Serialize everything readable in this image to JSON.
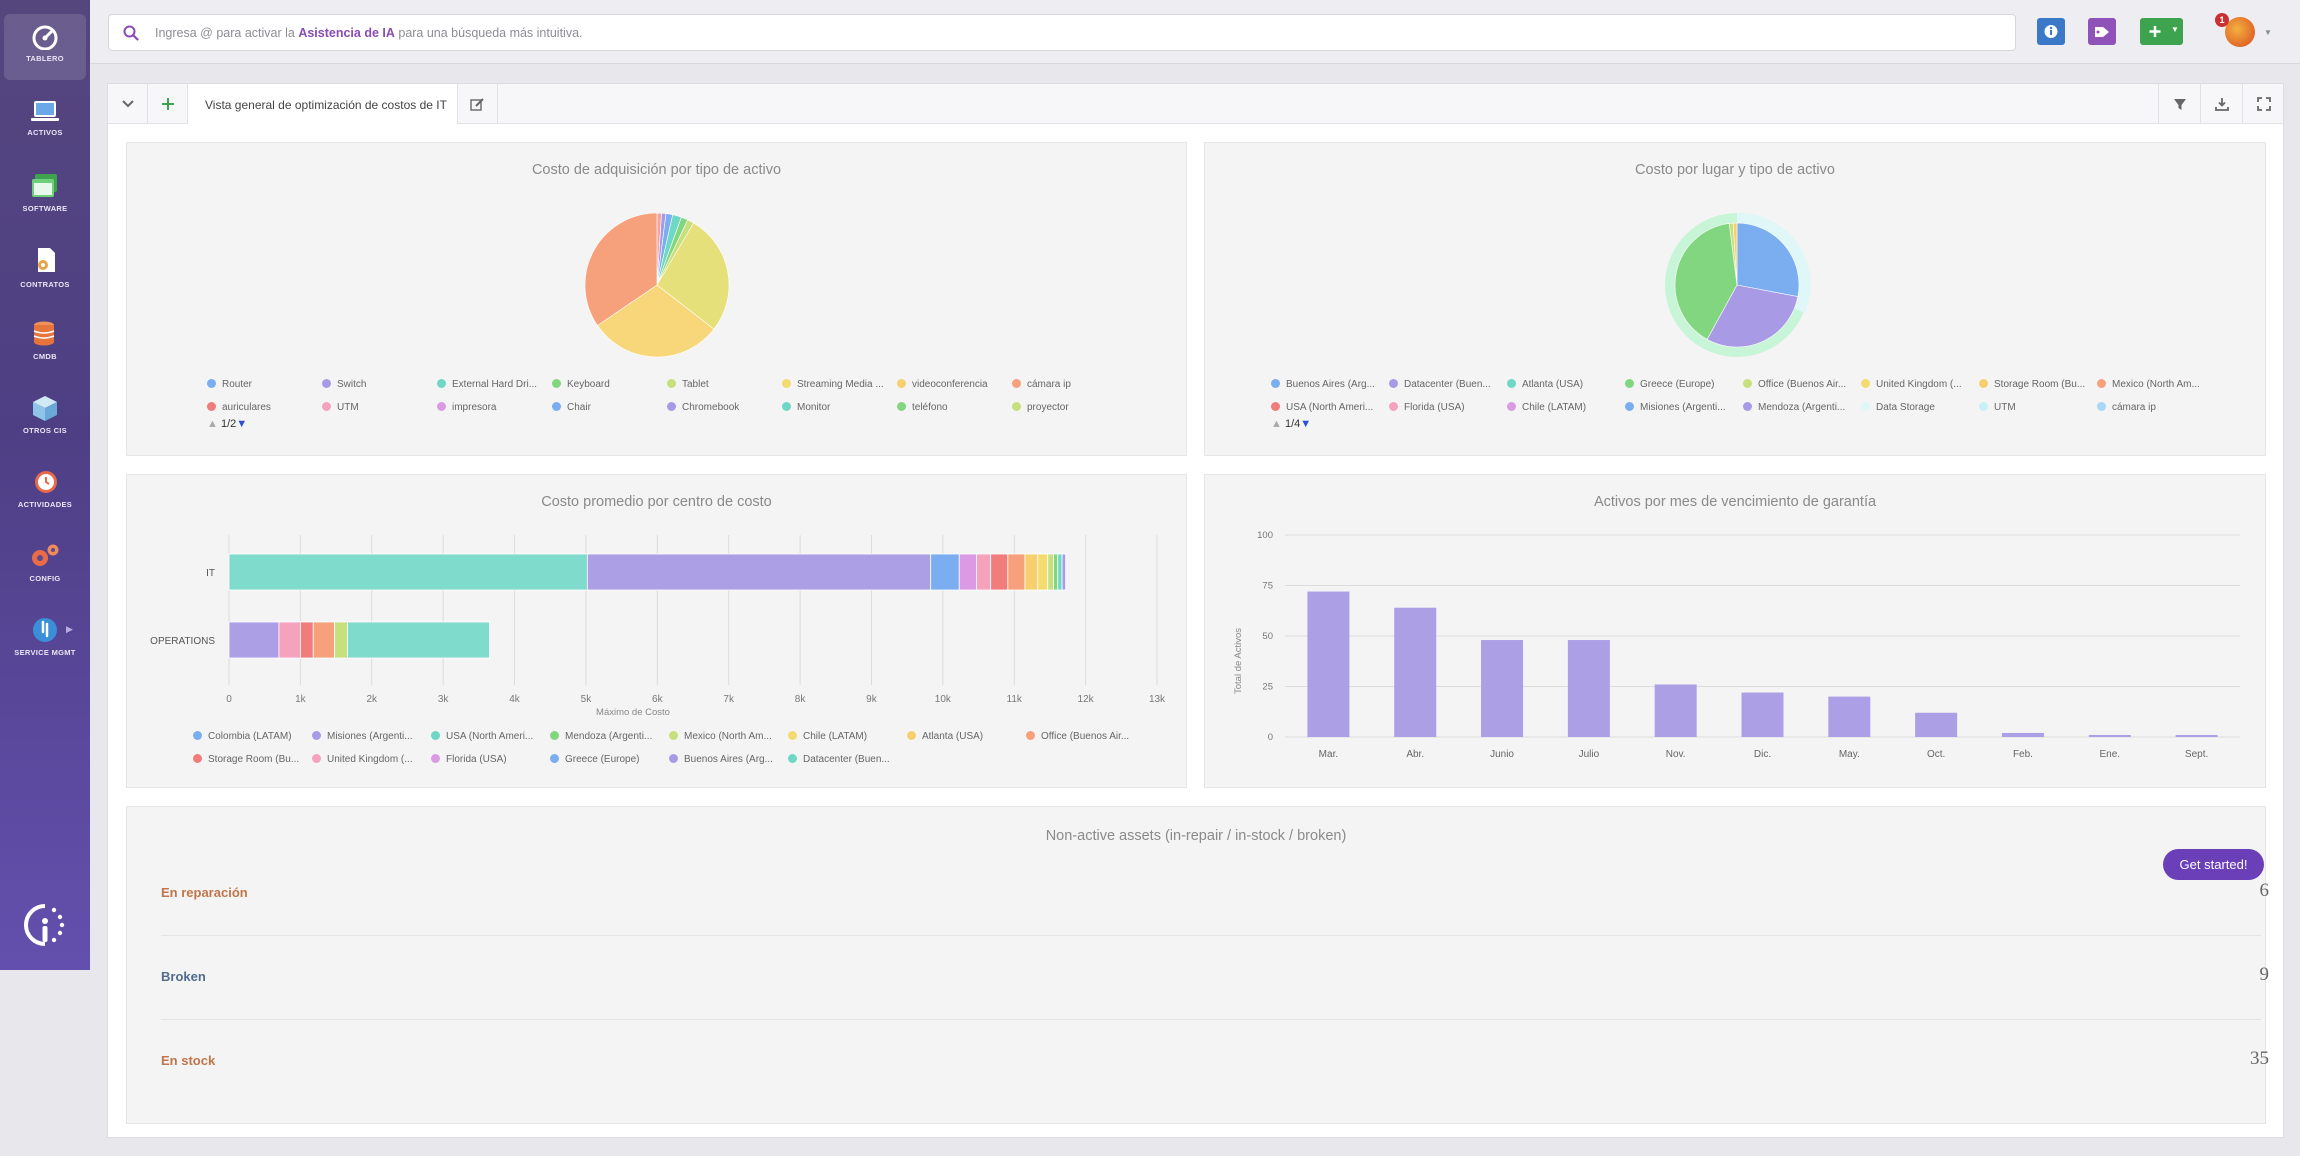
{
  "nav": [
    {
      "label": "TABLERO",
      "icon": "gauge-icon"
    },
    {
      "label": "ACTIVOS",
      "icon": "laptop-icon"
    },
    {
      "label": "SOFTWARE",
      "icon": "software-window-icon"
    },
    {
      "label": "CONTRATOS",
      "icon": "contract-icon"
    },
    {
      "label": "CMDB",
      "icon": "database-icon"
    },
    {
      "label": "OTROS CIS",
      "icon": "box-icon"
    },
    {
      "label": "ACTIVIDADES",
      "icon": "clock-icon"
    },
    {
      "label": "CONFIG",
      "icon": "gears-icon"
    },
    {
      "label": "SERVICE MGMT",
      "icon": "service-icon"
    }
  ],
  "search": {
    "prefix": "Ingresa @ para activar la ",
    "highlight": "Asistencia de IA",
    "suffix": " para una búsqueda más intuitiva."
  },
  "notifications": {
    "count": "1"
  },
  "tab": {
    "title": "Vista general de optimización de costos de IT"
  },
  "chart1": {
    "title": "Costo de adquisición por tipo de activo",
    "pager": "1/2"
  },
  "chart2": {
    "title": "Costo por lugar y tipo de activo",
    "pager": "1/4"
  },
  "chart3": {
    "title": "Costo promedio por centro de costo"
  },
  "chart4": {
    "title": "Activos por mes de vencimiento de garantía"
  },
  "nonactive": {
    "title": "Non-active assets (in-repair / in-stock / broken)",
    "rows": [
      {
        "label": "En reparación",
        "count": "6",
        "color": "#c0764a"
      },
      {
        "label": "Broken",
        "count": "9",
        "color": "#4f6c8e"
      },
      {
        "label": "En stock",
        "count": "35",
        "color": "#c0764a"
      }
    ]
  },
  "get_started": "Get started!",
  "chart_data": [
    {
      "type": "pie",
      "title": "Costo de adquisición por tipo de activo",
      "legend": [
        "Router",
        "Switch",
        "External Hard Dri...",
        "Keyboard",
        "Tablet",
        "Streaming Media ...",
        "videoconferencia",
        "cámara ip",
        "auriculares",
        "UTM",
        "impresora",
        "Chair",
        "Chromebook",
        "Monitor",
        "teléfono",
        "proyector"
      ],
      "legend_colors": [
        "#7aaef0",
        "#a99ae6",
        "#6fd8c4",
        "#82d67f",
        "#c7df7d",
        "#f3db6f",
        "#f8cf6e",
        "#f7a07c",
        "#f07c7c",
        "#f5a2bd",
        "#dd9ae4",
        "#7aaef0",
        "#a99ae6",
        "#6fd8c4",
        "#82d67f",
        "#c7df7d"
      ],
      "slices": [
        {
          "label": "External Hard Dri...",
          "value": 1,
          "color": "#f4a39e"
        },
        {
          "label": "Switch",
          "value": 1,
          "color": "#a99ae6"
        },
        {
          "label": "Router",
          "value": 1.5,
          "color": "#7aaef0"
        },
        {
          "label": "Monitor",
          "value": 2,
          "color": "#6fd8c4"
        },
        {
          "label": "Keyboard",
          "value": 1.5,
          "color": "#82d67f"
        },
        {
          "label": "Tablet",
          "value": 1.5,
          "color": "#c7df7d"
        },
        {
          "label": "Streaming Media ...",
          "value": 27,
          "color": "#e6e07a"
        },
        {
          "label": "videoconferencia",
          "value": 30,
          "color": "#f8d77a"
        },
        {
          "label": "cámara ip",
          "value": 34.5,
          "color": "#f7a07c"
        }
      ]
    },
    {
      "type": "pie",
      "title": "Costo por lugar y tipo de activo",
      "legend": [
        "Buenos Aires (Arg...",
        "Datacenter (Buen...",
        "Atlanta (USA)",
        "Greece (Europe)",
        "Office (Buenos Air...",
        "United Kingdom (...",
        "Storage Room (Bu...",
        "Mexico (North Am...",
        "USA (North Ameri...",
        "Florida (USA)",
        "Chile (LATAM)",
        "Misiones (Argenti...",
        "Mendoza (Argenti...",
        "Data Storage",
        "UTM",
        "cámara ip"
      ],
      "legend_colors": [
        "#7aaef0",
        "#a99ae6",
        "#6fd8c4",
        "#82d67f",
        "#c7df7d",
        "#f3db6f",
        "#f8cf6e",
        "#f7a07c",
        "#f07c7c",
        "#f5a2bd",
        "#dd9ae4",
        "#7aaef0",
        "#a99ae6",
        "#dff7f7",
        "#c8f0f8",
        "#a8d8f8"
      ],
      "slices": [
        {
          "label": "Buenos Aires (Arg...",
          "value": 28,
          "color": "#7aaef0"
        },
        {
          "label": "Datacenter (Buen...",
          "value": 30,
          "color": "#a99ae6"
        },
        {
          "label": "Greece (Europe)",
          "value": 40,
          "color": "#82d67f"
        },
        {
          "label": "Office (Buenos Air...",
          "value": 1,
          "color": "#c7df7d"
        },
        {
          "label": "Storage Room (Bu...",
          "value": 1,
          "color": "#f8cf6e"
        }
      ]
    },
    {
      "type": "bar",
      "orientation": "horizontal",
      "stacked": true,
      "title": "Costo promedio por centro de costo",
      "xlabel": "Máximo de Costo",
      "xlim": [
        0,
        13000
      ],
      "xticks": [
        "0",
        "1k",
        "2k",
        "3k",
        "4k",
        "5k",
        "6k",
        "7k",
        "8k",
        "9k",
        "10k",
        "11k",
        "12k",
        "13k"
      ],
      "categories": [
        "IT",
        "OPERATIONS"
      ],
      "legend": [
        "Colombia (LATAM)",
        "Misiones (Argenti...",
        "USA (North Ameri...",
        "Mendoza (Argenti...",
        "Mexico (North Am...",
        "Chile (LATAM)",
        "Atlanta (USA)",
        "Office (Buenos Air...",
        "Storage Room (Bu...",
        "United Kingdom (...",
        "Florida (USA)",
        "Greece (Europe)",
        "Buenos Aires (Arg...",
        "Datacenter (Buen..."
      ],
      "legend_colors": [
        "#7aaef0",
        "#a99ae6",
        "#6fd8c4",
        "#82d67f",
        "#c7df7d",
        "#f3db6f",
        "#f8cf6e",
        "#f7a07c",
        "#f07c7c",
        "#f5a2bd",
        "#dd9ae4",
        "#7aaef0",
        "#a99ae6",
        "#6fd8c4"
      ],
      "segments": [
        [
          {
            "value": 5020,
            "color": "#7fdccc"
          },
          {
            "value": 4810,
            "color": "#ac9fe6"
          },
          {
            "value": 400,
            "color": "#7aaef0"
          },
          {
            "value": 240,
            "color": "#dd9ae4"
          },
          {
            "value": 200,
            "color": "#f5a2bd"
          },
          {
            "value": 240,
            "color": "#f07c7c"
          },
          {
            "value": 240,
            "color": "#f7a07c"
          },
          {
            "value": 180,
            "color": "#f8cf6e"
          },
          {
            "value": 140,
            "color": "#f3db6f"
          },
          {
            "value": 80,
            "color": "#c7df7d"
          },
          {
            "value": 60,
            "color": "#82d67f"
          },
          {
            "value": 60,
            "color": "#6fd8c4"
          },
          {
            "value": 50,
            "color": "#a99ae6"
          }
        ],
        [
          {
            "value": 700,
            "color": "#ac9fe6"
          },
          {
            "value": 300,
            "color": "#f5a2bd"
          },
          {
            "value": 180,
            "color": "#f07c7c"
          },
          {
            "value": 300,
            "color": "#f7a07c"
          },
          {
            "value": 180,
            "color": "#c7df7d"
          },
          {
            "value": 1990,
            "color": "#7fdccc"
          }
        ]
      ]
    },
    {
      "type": "bar",
      "title": "Activos por mes de vencimiento de garantía",
      "ylabel": "Total de Activos",
      "ylim": [
        0,
        100
      ],
      "yticks": [
        0,
        25,
        50,
        75,
        100
      ],
      "categories": [
        "Mar.",
        "Abr.",
        "Junio",
        "Julio",
        "Nov.",
        "Dic.",
        "May.",
        "Oct.",
        "Feb.",
        "Ene.",
        "Sept."
      ],
      "values": [
        72,
        64,
        48,
        48,
        26,
        22,
        20,
        12,
        2,
        1,
        1
      ],
      "color": "#ac9fe6"
    }
  ]
}
